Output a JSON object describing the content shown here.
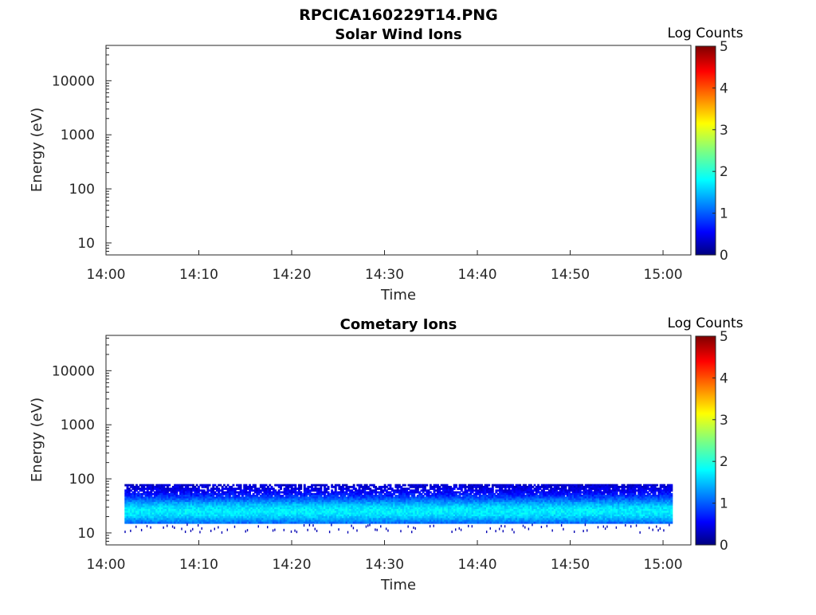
{
  "figure": {
    "title": "RPCICA160229T14.PNG"
  },
  "chart_data": [
    {
      "type": "heatmap",
      "title": "Solar Wind Ions",
      "xlabel": "Time",
      "ylabel": "Energy (eV)",
      "x_ticks": [
        "14:00",
        "14:10",
        "14:20",
        "14:30",
        "14:40",
        "14:50",
        "15:00"
      ],
      "xlim": [
        "14:00",
        "15:03"
      ],
      "y_scale": "log",
      "y_ticks": [
        10,
        100,
        1000,
        10000
      ],
      "y_tick_labels": [
        "10",
        "100",
        "1000",
        "10000"
      ],
      "ylim": [
        6,
        45000
      ],
      "colorbar": {
        "label": "Log Counts",
        "range": [
          0,
          5
        ],
        "ticks": [
          "0",
          "1",
          "2",
          "3",
          "4",
          "5"
        ],
        "colormap": "jet"
      },
      "data": {
        "present": false
      }
    },
    {
      "type": "heatmap",
      "title": "Cometary Ions",
      "xlabel": "Time",
      "ylabel": "Energy (eV)",
      "x_ticks": [
        "14:00",
        "14:10",
        "14:20",
        "14:30",
        "14:40",
        "14:50",
        "15:00"
      ],
      "xlim": [
        "14:00",
        "15:03"
      ],
      "y_scale": "log",
      "y_ticks": [
        10,
        100,
        1000,
        10000
      ],
      "y_tick_labels": [
        "10",
        "100",
        "1000",
        "10000"
      ],
      "ylim": [
        6,
        45000
      ],
      "colorbar": {
        "label": "Log Counts",
        "range": [
          0,
          5
        ],
        "ticks": [
          "0",
          "1",
          "2",
          "3",
          "4",
          "5"
        ],
        "colormap": "jet"
      },
      "data": {
        "present": true,
        "time_range": [
          "14:02",
          "15:01"
        ],
        "energy_range_eV": [
          15,
          80
        ],
        "peak_energy_eV": 25,
        "peak_log_counts": 1.8,
        "edge_log_counts": 0.3
      }
    }
  ]
}
